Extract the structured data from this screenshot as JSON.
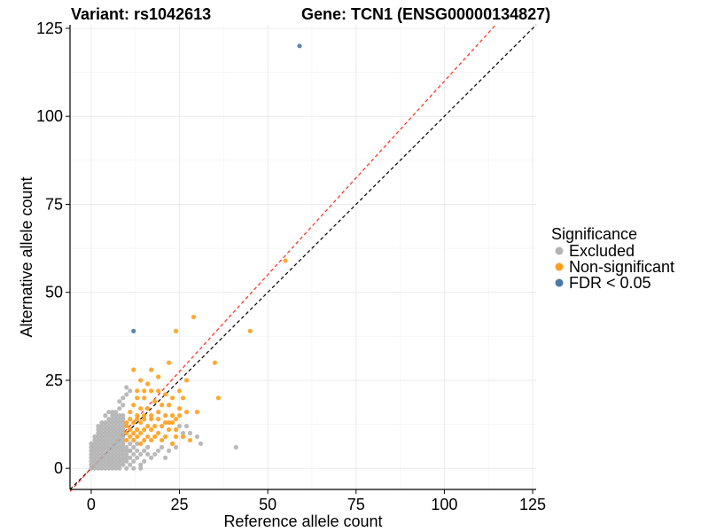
{
  "chart_data": {
    "type": "scatter",
    "title_left": "Variant: rs1042613",
    "title_right": "Gene: TCN1 (ENSG00000134827)",
    "xlabel": "Reference allele count",
    "ylabel": "Alternative allele count",
    "xlim": [
      -6,
      126
    ],
    "ylim": [
      -6,
      126
    ],
    "xticks": [
      0,
      25,
      50,
      75,
      100,
      125
    ],
    "yticks": [
      0,
      25,
      50,
      75,
      100,
      125
    ],
    "grid": true,
    "legend": {
      "title": "Significance",
      "placement": "right",
      "entries": [
        {
          "label": "Excluded",
          "color": "#b3b3b3"
        },
        {
          "label": "Non-significant",
          "color": "#ff9e1c"
        },
        {
          "label": "FDR < 0.05",
          "color": "#4a79a5"
        }
      ]
    },
    "reference_lines": [
      {
        "slope": 1.0,
        "intercept": 0,
        "color": "#000000",
        "style": "dashed"
      },
      {
        "slope": 1.1,
        "intercept": 0,
        "color": "#ff2a1a",
        "style": "dashed"
      }
    ],
    "series": [
      {
        "name": "FDR < 0.05",
        "color": "#4a79a5",
        "points": [
          [
            59,
            120
          ],
          [
            12,
            39
          ]
        ]
      },
      {
        "name": "Non-significant",
        "color": "#ff9e1c",
        "points": [
          [
            29,
            43
          ],
          [
            24,
            39
          ],
          [
            45,
            39
          ],
          [
            55,
            59
          ],
          [
            35,
            30
          ],
          [
            36,
            20
          ],
          [
            12,
            28
          ],
          [
            17,
            28
          ],
          [
            22,
            30
          ],
          [
            27,
            25
          ],
          [
            25,
            22
          ],
          [
            14,
            25
          ],
          [
            16,
            24
          ],
          [
            19,
            26
          ],
          [
            13,
            22
          ],
          [
            15,
            22
          ],
          [
            17,
            22
          ],
          [
            19,
            22
          ],
          [
            21,
            21
          ],
          [
            23,
            20
          ],
          [
            26,
            20
          ],
          [
            13,
            20
          ],
          [
            15,
            20
          ],
          [
            18,
            19
          ],
          [
            20,
            18
          ],
          [
            22,
            18
          ],
          [
            25,
            17
          ],
          [
            27,
            16
          ],
          [
            30,
            16
          ],
          [
            12,
            18
          ],
          [
            14,
            17
          ],
          [
            16,
            17
          ],
          [
            11,
            16
          ],
          [
            13,
            15
          ],
          [
            15,
            15
          ],
          [
            17,
            15
          ],
          [
            19,
            16
          ],
          [
            21,
            15
          ],
          [
            23,
            15
          ],
          [
            25,
            15
          ],
          [
            11,
            14
          ],
          [
            13,
            14
          ],
          [
            15,
            14
          ],
          [
            17,
            14
          ],
          [
            19,
            14
          ],
          [
            21,
            13
          ],
          [
            23,
            13
          ],
          [
            10,
            13
          ],
          [
            12,
            13
          ],
          [
            14,
            13
          ],
          [
            16,
            12
          ],
          [
            18,
            12
          ],
          [
            20,
            12
          ],
          [
            22,
            11
          ],
          [
            24,
            11
          ],
          [
            10,
            12
          ],
          [
            11,
            11
          ],
          [
            13,
            11
          ],
          [
            15,
            11
          ],
          [
            17,
            11
          ],
          [
            19,
            10
          ],
          [
            21,
            9
          ],
          [
            24,
            9
          ],
          [
            10,
            10
          ],
          [
            12,
            10
          ],
          [
            14,
            10
          ],
          [
            16,
            9
          ],
          [
            18,
            9
          ],
          [
            20,
            8
          ],
          [
            11,
            9
          ],
          [
            13,
            9
          ],
          [
            15,
            8
          ],
          [
            17,
            8
          ],
          [
            23,
            7
          ],
          [
            26,
            9
          ],
          [
            28,
            8
          ],
          [
            10,
            8
          ],
          [
            12,
            8
          ],
          [
            14,
            7
          ],
          [
            22,
            13
          ],
          [
            24,
            14
          ]
        ]
      },
      {
        "name": "Excluded",
        "color": "#b3b3b3",
        "points": [
          [
            0,
            0
          ],
          [
            1,
            0
          ],
          [
            2,
            0
          ],
          [
            3,
            0
          ],
          [
            4,
            0
          ],
          [
            5,
            0
          ],
          [
            6,
            0
          ],
          [
            7,
            0
          ],
          [
            8,
            0
          ],
          [
            10,
            0
          ],
          [
            0,
            1
          ],
          [
            1,
            1
          ],
          [
            2,
            1
          ],
          [
            3,
            1
          ],
          [
            4,
            1
          ],
          [
            5,
            1
          ],
          [
            6,
            1
          ],
          [
            7,
            1
          ],
          [
            8,
            1
          ],
          [
            9,
            1
          ],
          [
            11,
            1
          ],
          [
            0,
            2
          ],
          [
            1,
            2
          ],
          [
            2,
            2
          ],
          [
            3,
            2
          ],
          [
            4,
            2
          ],
          [
            5,
            2
          ],
          [
            6,
            2
          ],
          [
            7,
            2
          ],
          [
            8,
            2
          ],
          [
            9,
            2
          ],
          [
            10,
            2
          ],
          [
            12,
            2
          ],
          [
            0,
            3
          ],
          [
            1,
            3
          ],
          [
            2,
            3
          ],
          [
            3,
            3
          ],
          [
            4,
            3
          ],
          [
            5,
            3
          ],
          [
            6,
            3
          ],
          [
            7,
            3
          ],
          [
            8,
            3
          ],
          [
            9,
            3
          ],
          [
            10,
            3
          ],
          [
            11,
            3
          ],
          [
            13,
            3
          ],
          [
            0,
            4
          ],
          [
            1,
            4
          ],
          [
            2,
            4
          ],
          [
            3,
            4
          ],
          [
            4,
            4
          ],
          [
            5,
            4
          ],
          [
            6,
            4
          ],
          [
            7,
            4
          ],
          [
            8,
            4
          ],
          [
            9,
            4
          ],
          [
            10,
            4
          ],
          [
            12,
            4
          ],
          [
            14,
            4
          ],
          [
            0,
            5
          ],
          [
            1,
            5
          ],
          [
            2,
            5
          ],
          [
            3,
            5
          ],
          [
            4,
            5
          ],
          [
            5,
            5
          ],
          [
            6,
            5
          ],
          [
            7,
            5
          ],
          [
            8,
            5
          ],
          [
            9,
            5
          ],
          [
            10,
            5
          ],
          [
            11,
            5
          ],
          [
            13,
            5
          ],
          [
            15,
            5
          ],
          [
            0,
            6
          ],
          [
            1,
            6
          ],
          [
            2,
            6
          ],
          [
            3,
            6
          ],
          [
            4,
            6
          ],
          [
            5,
            6
          ],
          [
            6,
            6
          ],
          [
            7,
            6
          ],
          [
            8,
            6
          ],
          [
            9,
            6
          ],
          [
            10,
            6
          ],
          [
            12,
            6
          ],
          [
            16,
            6
          ],
          [
            0,
            7
          ],
          [
            1,
            7
          ],
          [
            2,
            7
          ],
          [
            3,
            7
          ],
          [
            4,
            7
          ],
          [
            5,
            7
          ],
          [
            6,
            7
          ],
          [
            7,
            7
          ],
          [
            8,
            7
          ],
          [
            9,
            7
          ],
          [
            11,
            7
          ],
          [
            13,
            7
          ],
          [
            1,
            8
          ],
          [
            2,
            8
          ],
          [
            3,
            8
          ],
          [
            4,
            8
          ],
          [
            5,
            8
          ],
          [
            6,
            8
          ],
          [
            7,
            8
          ],
          [
            8,
            8
          ],
          [
            9,
            8
          ],
          [
            1,
            9
          ],
          [
            2,
            9
          ],
          [
            3,
            9
          ],
          [
            4,
            9
          ],
          [
            5,
            9
          ],
          [
            6,
            9
          ],
          [
            7,
            9
          ],
          [
            8,
            9
          ],
          [
            9,
            9
          ],
          [
            2,
            10
          ],
          [
            3,
            10
          ],
          [
            4,
            10
          ],
          [
            5,
            10
          ],
          [
            6,
            10
          ],
          [
            7,
            10
          ],
          [
            8,
            10
          ],
          [
            9,
            10
          ],
          [
            2,
            11
          ],
          [
            3,
            11
          ],
          [
            4,
            11
          ],
          [
            5,
            11
          ],
          [
            6,
            11
          ],
          [
            7,
            11
          ],
          [
            8,
            11
          ],
          [
            9,
            11
          ],
          [
            3,
            12
          ],
          [
            4,
            12
          ],
          [
            5,
            12
          ],
          [
            6,
            12
          ],
          [
            7,
            12
          ],
          [
            8,
            12
          ],
          [
            9,
            12
          ],
          [
            4,
            13
          ],
          [
            5,
            13
          ],
          [
            6,
            13
          ],
          [
            7,
            13
          ],
          [
            8,
            13
          ],
          [
            9,
            13
          ],
          [
            5,
            14
          ],
          [
            6,
            14
          ],
          [
            7,
            14
          ],
          [
            8,
            14
          ],
          [
            9,
            14
          ],
          [
            6,
            15
          ],
          [
            7,
            15
          ],
          [
            8,
            15
          ],
          [
            9,
            15
          ],
          [
            6,
            16
          ],
          [
            7,
            16
          ],
          [
            8,
            17
          ],
          [
            9,
            18
          ],
          [
            8,
            19
          ],
          [
            9,
            20
          ],
          [
            10,
            21
          ],
          [
            11,
            22
          ],
          [
            10,
            23
          ],
          [
            3,
            13
          ],
          [
            2,
            12
          ],
          [
            4,
            15
          ],
          [
            5,
            16
          ],
          [
            26,
            10
          ],
          [
            25,
            12
          ],
          [
            28,
            10
          ],
          [
            27,
            12
          ],
          [
            20,
            6
          ],
          [
            22,
            5
          ],
          [
            18,
            4
          ],
          [
            21,
            3
          ],
          [
            15,
            2
          ],
          [
            14,
            1
          ],
          [
            17,
            3
          ],
          [
            19,
            5
          ],
          [
            16,
            4
          ],
          [
            24,
            6
          ],
          [
            31,
            7
          ],
          [
            41,
            6
          ],
          [
            14,
            0
          ],
          [
            12,
            0
          ],
          [
            11,
            5
          ],
          [
            30,
            9
          ]
        ]
      }
    ]
  }
}
